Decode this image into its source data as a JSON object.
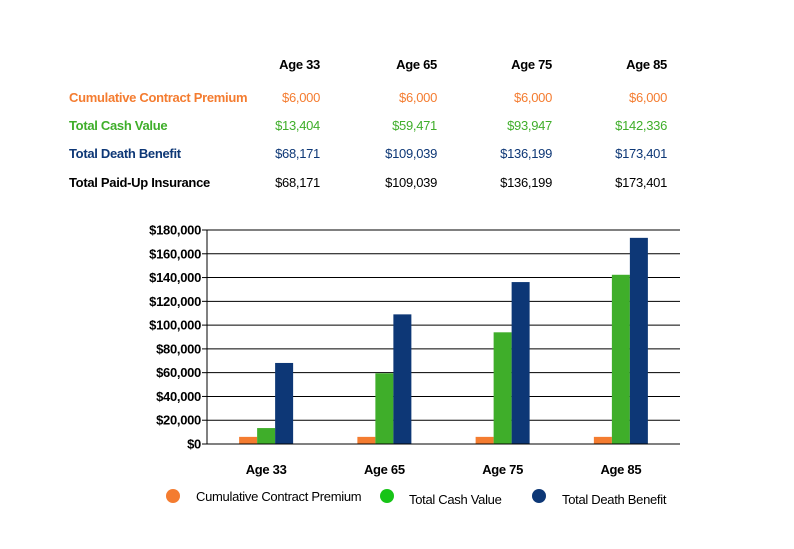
{
  "table": {
    "columns": [
      "Age 33",
      "Age 65",
      "Age 75",
      "Age 85"
    ],
    "rows": [
      {
        "label": "Cumulative Contract Premium",
        "color": "#f47c30",
        "values": [
          "$6,000",
          "$6,000",
          "$6,000",
          "$6,000"
        ]
      },
      {
        "label": "Total Cash Value",
        "color": "#3fae2a",
        "values": [
          "$13,404",
          "$59,471",
          "$93,947",
          "$142,336"
        ]
      },
      {
        "label": "Total Death Benefit",
        "color": "#0d3776",
        "values": [
          "$68,171",
          "$109,039",
          "$136,199",
          "$173,401"
        ]
      },
      {
        "label": "Total Paid-Up Insurance",
        "color": "#000000",
        "values": [
          "$68,171",
          "$109,039",
          "$136,199",
          "$173,401"
        ]
      }
    ]
  },
  "chart_data": {
    "type": "bar",
    "categories": [
      "Age 33",
      "Age 65",
      "Age 75",
      "Age 85"
    ],
    "series": [
      {
        "name": "Cumulative Contract Premium",
        "color": "#f47c30",
        "values": [
          6000,
          6000,
          6000,
          6000
        ]
      },
      {
        "name": "Total Cash Value",
        "color": "#3fae2a",
        "values": [
          13404,
          59471,
          93947,
          142336
        ]
      },
      {
        "name": "Total Death Benefit",
        "color": "#0d3776",
        "values": [
          68171,
          109039,
          136199,
          173401
        ]
      }
    ],
    "ylim": [
      0,
      180000
    ],
    "yticks": [
      0,
      20000,
      40000,
      60000,
      80000,
      100000,
      120000,
      140000,
      160000,
      180000
    ],
    "ytick_labels": [
      "$0",
      "$20,000",
      "$40,000",
      "$60,000",
      "$80,000",
      "$100,000",
      "$120,000",
      "$140,000",
      "$160,000",
      "$180,000"
    ],
    "grid": true,
    "legend": "bottom",
    "legend_marker_colors": [
      "#f47c30",
      "#17c417",
      "#0d3776"
    ]
  }
}
